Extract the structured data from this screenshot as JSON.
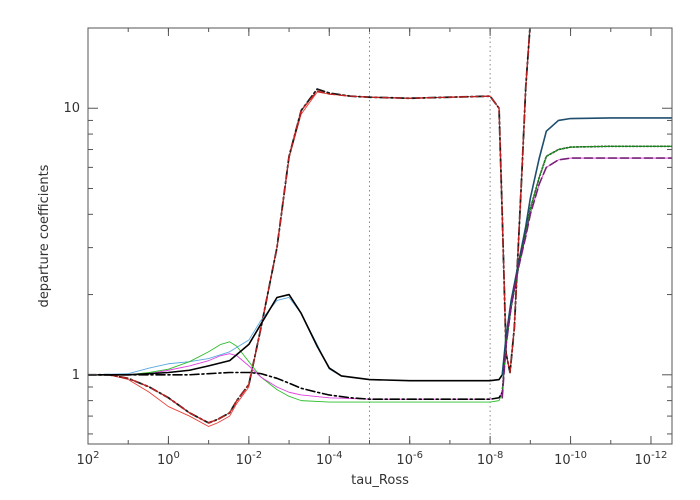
{
  "chart_data": {
    "type": "line",
    "title": "",
    "xlabel": "tau_Ross",
    "ylabel": "departure coefficients",
    "x_scale": "log",
    "y_scale": "log",
    "x_reversed": true,
    "xlim": [
      100,
      3e-13
    ],
    "ylim": [
      0.55,
      20
    ],
    "grid": false,
    "x_ticks": [
      {
        "value": 100,
        "base": "10",
        "exp": "2"
      },
      {
        "value": 1,
        "base": "10",
        "exp": "0"
      },
      {
        "value": 0.01,
        "base": "10",
        "exp": "-2"
      },
      {
        "value": 0.0001,
        "base": "10",
        "exp": "-4"
      },
      {
        "value": 1e-06,
        "base": "10",
        "exp": "-6"
      },
      {
        "value": 1e-08,
        "base": "10",
        "exp": "-8"
      },
      {
        "value": 1e-10,
        "base": "10",
        "exp": "-10"
      },
      {
        "value": 1e-12,
        "base": "10",
        "exp": "-12"
      }
    ],
    "y_ticks": [
      {
        "value": 1,
        "label": "1"
      },
      {
        "value": 10,
        "label": "10"
      }
    ],
    "reference_lines_x": [
      1e-05,
      1e-08
    ],
    "series": [
      {
        "color": "#e8403a",
        "dash": "",
        "width": 0.9,
        "points": [
          [
            100,
            1
          ],
          [
            30,
            1
          ],
          [
            10,
            0.96
          ],
          [
            3,
            0.86
          ],
          [
            1,
            0.76
          ],
          [
            0.3,
            0.7
          ],
          [
            0.1,
            0.64
          ],
          [
            0.06,
            0.66
          ],
          [
            0.03,
            0.7
          ],
          [
            0.02,
            0.78
          ],
          [
            0.01,
            0.9
          ],
          [
            0.005,
            1.5
          ],
          [
            0.002,
            3.0
          ],
          [
            0.001,
            6.5
          ],
          [
            0.0005,
            9.5
          ],
          [
            0.0002,
            11.5
          ],
          [
            0.0001,
            11.3
          ],
          [
            3e-05,
            11.1
          ],
          [
            1e-05,
            11.0
          ],
          [
            1e-06,
            10.9
          ],
          [
            1e-07,
            11.0
          ],
          [
            1e-08,
            11.1
          ],
          [
            6e-09,
            10.0
          ],
          [
            5e-09,
            4.0
          ],
          [
            4e-09,
            1.2
          ],
          [
            3.2e-09,
            1.02
          ],
          [
            2.5e-09,
            1.5
          ],
          [
            2e-09,
            3.0
          ],
          [
            1.6e-09,
            6.0
          ],
          [
            1.3e-09,
            12
          ],
          [
            1e-09,
            21
          ]
        ]
      },
      {
        "color": "#1a1a1a",
        "dash": "8 3 2 3",
        "width": 1.8,
        "points": [
          [
            100,
            1
          ],
          [
            30,
            1
          ],
          [
            10,
            0.97
          ],
          [
            3,
            0.9
          ],
          [
            1,
            0.82
          ],
          [
            0.3,
            0.72
          ],
          [
            0.1,
            0.66
          ],
          [
            0.06,
            0.68
          ],
          [
            0.03,
            0.72
          ],
          [
            0.02,
            0.8
          ],
          [
            0.01,
            0.92
          ],
          [
            0.005,
            1.5
          ],
          [
            0.002,
            3.0
          ],
          [
            0.001,
            6.6
          ],
          [
            0.0005,
            9.8
          ],
          [
            0.0002,
            11.8
          ],
          [
            0.0001,
            11.4
          ],
          [
            3e-05,
            11.1
          ],
          [
            1e-05,
            11.0
          ],
          [
            1e-06,
            10.9
          ],
          [
            1e-07,
            11.0
          ],
          [
            1e-08,
            11.1
          ],
          [
            6e-09,
            10.0
          ],
          [
            5e-09,
            4.0
          ],
          [
            4e-09,
            1.2
          ],
          [
            3.2e-09,
            1.02
          ],
          [
            2.5e-09,
            1.5
          ],
          [
            2e-09,
            3.0
          ],
          [
            1.6e-09,
            6.0
          ],
          [
            1.3e-09,
            12
          ],
          [
            1e-09,
            21
          ]
        ]
      },
      {
        "color": "#c02020",
        "dash": "7 4",
        "width": 1.3,
        "points": [
          [
            100,
            1
          ],
          [
            30,
            1
          ],
          [
            10,
            0.97
          ],
          [
            3,
            0.9
          ],
          [
            1,
            0.82
          ],
          [
            0.3,
            0.72
          ],
          [
            0.1,
            0.66
          ],
          [
            0.06,
            0.68
          ],
          [
            0.03,
            0.72
          ],
          [
            0.02,
            0.8
          ],
          [
            0.01,
            0.92
          ],
          [
            0.005,
            1.5
          ],
          [
            0.002,
            3.0
          ],
          [
            0.001,
            6.6
          ],
          [
            0.0005,
            9.8
          ],
          [
            0.0002,
            11.6
          ],
          [
            0.0001,
            11.3
          ],
          [
            3e-05,
            11.1
          ],
          [
            1e-05,
            11.0
          ],
          [
            1e-06,
            10.9
          ],
          [
            1e-07,
            11.0
          ],
          [
            1e-08,
            11.1
          ],
          [
            6e-09,
            10.0
          ],
          [
            5e-09,
            4.0
          ],
          [
            4e-09,
            1.2
          ],
          [
            3.2e-09,
            1.02
          ],
          [
            2.5e-09,
            1.5
          ],
          [
            2e-09,
            3.0
          ],
          [
            1.6e-09,
            6.0
          ],
          [
            1.3e-09,
            12
          ],
          [
            1e-09,
            21
          ]
        ]
      },
      {
        "color": "#5aa8e0",
        "dash": "",
        "width": 0.9,
        "points": [
          [
            100,
            1
          ],
          [
            10,
            1.01
          ],
          [
            3,
            1.06
          ],
          [
            1,
            1.1
          ],
          [
            0.3,
            1.12
          ],
          [
            0.1,
            1.15
          ],
          [
            0.03,
            1.22
          ],
          [
            0.01,
            1.35
          ],
          [
            0.005,
            1.6
          ],
          [
            0.002,
            1.9
          ],
          [
            0.001,
            1.95
          ],
          [
            0.0005,
            1.7
          ],
          [
            0.0002,
            1.3
          ],
          [
            0.0001,
            1.05
          ],
          [
            5e-05,
            0.99
          ],
          [
            1e-05,
            0.96
          ],
          [
            1e-06,
            0.95
          ],
          [
            1e-07,
            0.95
          ],
          [
            1e-08,
            0.95
          ],
          [
            6e-09,
            0.96
          ],
          [
            5e-09,
            1.0
          ],
          [
            4e-09,
            1.4
          ],
          [
            3e-09,
            1.9
          ],
          [
            2e-09,
            2.6
          ],
          [
            1.3e-09,
            3.6
          ],
          [
            1e-09,
            4.6
          ],
          [
            6e-10,
            6.5
          ],
          [
            4e-10,
            8.2
          ],
          [
            2e-10,
            9.0
          ],
          [
            1e-10,
            9.15
          ],
          [
            1e-11,
            9.2
          ],
          [
            3e-13,
            9.2
          ]
        ]
      },
      {
        "color": "#2ec02e",
        "dash": "",
        "width": 0.9,
        "points": [
          [
            100,
            1
          ],
          [
            10,
            1.0
          ],
          [
            3,
            1.02
          ],
          [
            1,
            1.05
          ],
          [
            0.3,
            1.12
          ],
          [
            0.1,
            1.22
          ],
          [
            0.05,
            1.3
          ],
          [
            0.03,
            1.33
          ],
          [
            0.02,
            1.28
          ],
          [
            0.01,
            1.12
          ],
          [
            0.005,
            0.98
          ],
          [
            0.002,
            0.88
          ],
          [
            0.001,
            0.83
          ],
          [
            0.0005,
            0.8
          ],
          [
            0.0001,
            0.79
          ],
          [
            1e-05,
            0.79
          ],
          [
            1e-06,
            0.79
          ],
          [
            1e-07,
            0.79
          ],
          [
            1e-08,
            0.79
          ],
          [
            6e-09,
            0.8
          ],
          [
            5e-09,
            0.85
          ],
          [
            4e-09,
            1.3
          ],
          [
            3e-09,
            1.8
          ],
          [
            2e-09,
            2.5
          ],
          [
            1.3e-09,
            3.4
          ],
          [
            1e-09,
            4.2
          ],
          [
            6e-10,
            5.5
          ],
          [
            4e-10,
            6.6
          ],
          [
            2e-10,
            7.0
          ],
          [
            1e-10,
            7.15
          ],
          [
            1e-11,
            7.2
          ],
          [
            3e-13,
            7.2
          ]
        ]
      },
      {
        "color": "#e040e0",
        "dash": "",
        "width": 0.9,
        "points": [
          [
            100,
            1
          ],
          [
            10,
            1.0
          ],
          [
            3,
            1.01
          ],
          [
            1,
            1.04
          ],
          [
            0.3,
            1.08
          ],
          [
            0.1,
            1.13
          ],
          [
            0.05,
            1.18
          ],
          [
            0.03,
            1.2
          ],
          [
            0.02,
            1.18
          ],
          [
            0.01,
            1.08
          ],
          [
            0.005,
            0.98
          ],
          [
            0.002,
            0.9
          ],
          [
            0.001,
            0.86
          ],
          [
            0.0005,
            0.84
          ],
          [
            0.0001,
            0.82
          ],
          [
            1e-05,
            0.81
          ],
          [
            1e-06,
            0.81
          ],
          [
            1e-07,
            0.81
          ],
          [
            1e-08,
            0.81
          ],
          [
            6e-09,
            0.82
          ],
          [
            5e-09,
            0.86
          ],
          [
            4e-09,
            1.3
          ],
          [
            3e-09,
            1.8
          ],
          [
            2e-09,
            2.5
          ],
          [
            1.3e-09,
            3.3
          ],
          [
            1e-09,
            4.0
          ],
          [
            6e-10,
            5.2
          ],
          [
            4e-10,
            6.0
          ],
          [
            2e-10,
            6.4
          ],
          [
            1e-10,
            6.5
          ],
          [
            1e-11,
            6.5
          ],
          [
            3e-13,
            6.5
          ]
        ]
      },
      {
        "color": "#000000",
        "dash": "",
        "width": 1.6,
        "points": [
          [
            100,
            1
          ],
          [
            10,
            1.0
          ],
          [
            3,
            1.01
          ],
          [
            1,
            1.02
          ],
          [
            0.3,
            1.04
          ],
          [
            0.1,
            1.08
          ],
          [
            0.03,
            1.13
          ],
          [
            0.01,
            1.3
          ],
          [
            0.005,
            1.55
          ],
          [
            0.002,
            1.95
          ],
          [
            0.001,
            2.0
          ],
          [
            0.0005,
            1.7
          ],
          [
            0.0002,
            1.28
          ],
          [
            0.0001,
            1.06
          ],
          [
            5e-05,
            0.99
          ],
          [
            1e-05,
            0.96
          ],
          [
            1e-06,
            0.95
          ],
          [
            1e-07,
            0.95
          ],
          [
            1e-08,
            0.95
          ],
          [
            6e-09,
            0.96
          ],
          [
            5e-09,
            1.0
          ]
        ]
      },
      {
        "color": "#1f4e6e",
        "dash": "",
        "width": 1.6,
        "points": [
          [
            5e-09,
            1.0
          ],
          [
            4e-09,
            1.4
          ],
          [
            3e-09,
            1.9
          ],
          [
            2e-09,
            2.6
          ],
          [
            1.3e-09,
            3.6
          ],
          [
            1e-09,
            4.6
          ],
          [
            6e-10,
            6.5
          ],
          [
            4e-10,
            8.2
          ],
          [
            2e-10,
            9.0
          ],
          [
            1e-10,
            9.15
          ],
          [
            1e-11,
            9.2
          ],
          [
            3e-13,
            9.2
          ]
        ]
      },
      {
        "color": "#000000",
        "dash": "9 3 2 3",
        "width": 1.6,
        "points": [
          [
            100,
            1
          ],
          [
            10,
            1.0
          ],
          [
            3,
            1.0
          ],
          [
            1,
            1.0
          ],
          [
            0.3,
            1.0
          ],
          [
            0.1,
            1.01
          ],
          [
            0.03,
            1.02
          ],
          [
            0.01,
            1.02
          ],
          [
            0.005,
            1.01
          ],
          [
            0.002,
            0.97
          ],
          [
            0.001,
            0.93
          ],
          [
            0.0005,
            0.89
          ],
          [
            0.0002,
            0.86
          ],
          [
            0.0001,
            0.84
          ],
          [
            3e-05,
            0.82
          ],
          [
            1e-05,
            0.81
          ],
          [
            1e-06,
            0.81
          ],
          [
            1e-07,
            0.81
          ],
          [
            1e-08,
            0.81
          ],
          [
            6e-09,
            0.82
          ],
          [
            5e-09,
            0.86
          ]
        ]
      },
      {
        "color": "#000000",
        "dash": "1.5 2",
        "width": 1.6,
        "points": [
          [
            5e-09,
            0.86
          ],
          [
            4e-09,
            1.3
          ],
          [
            3e-09,
            1.8
          ],
          [
            2e-09,
            2.5
          ],
          [
            1.3e-09,
            3.4
          ],
          [
            1e-09,
            4.2
          ],
          [
            6e-10,
            5.5
          ],
          [
            4e-10,
            6.6
          ],
          [
            2e-10,
            7.0
          ],
          [
            1e-10,
            7.15
          ],
          [
            1e-11,
            7.2
          ],
          [
            3e-13,
            7.2
          ]
        ]
      },
      {
        "color": "#1a9a1a",
        "dash": "1.5 2",
        "width": 1.2,
        "points": [
          [
            5e-09,
            0.86
          ],
          [
            4e-09,
            1.3
          ],
          [
            3e-09,
            1.8
          ],
          [
            2e-09,
            2.5
          ],
          [
            1.3e-09,
            3.4
          ],
          [
            1e-09,
            4.2
          ],
          [
            6e-10,
            5.5
          ],
          [
            4e-10,
            6.6
          ],
          [
            2e-10,
            7.0
          ],
          [
            1e-10,
            7.15
          ],
          [
            1e-11,
            7.2
          ],
          [
            3e-13,
            7.2
          ]
        ]
      },
      {
        "color": "#7a1f7a",
        "dash": "8 4",
        "width": 1.6,
        "points": [
          [
            5e-09,
            0.82
          ],
          [
            4e-09,
            1.3
          ],
          [
            3e-09,
            1.8
          ],
          [
            2e-09,
            2.5
          ],
          [
            1.3e-09,
            3.3
          ],
          [
            1e-09,
            4.0
          ],
          [
            6e-10,
            5.2
          ],
          [
            4e-10,
            6.0
          ],
          [
            2e-10,
            6.4
          ],
          [
            1e-10,
            6.5
          ],
          [
            1e-11,
            6.5
          ],
          [
            3e-13,
            6.5
          ]
        ]
      }
    ]
  }
}
